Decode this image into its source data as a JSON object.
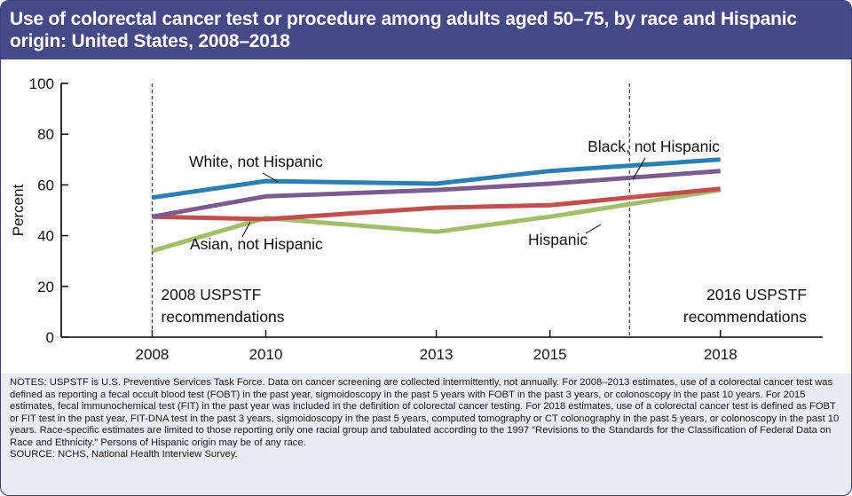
{
  "title": "Use of colorectal cancer test or procedure among adults aged 50–75, by race and Hispanic origin: United States, 2008–2018",
  "chart_data": {
    "type": "line",
    "x": [
      2008,
      2010,
      2013,
      2015,
      2018
    ],
    "xlim": [
      2006.4,
      2019.8
    ],
    "ylim": [
      0,
      100
    ],
    "yticks": [
      0,
      20,
      40,
      60,
      80,
      100
    ],
    "xlabel": "",
    "ylabel": "Percent",
    "grid": false,
    "series": [
      {
        "name": "White, not Hispanic",
        "values": [
          55,
          61.5,
          60.5,
          65.5,
          70
        ],
        "color": "#2e7fb0"
      },
      {
        "name": "Black, not Hispanic",
        "values": [
          47.5,
          55.5,
          58,
          60.5,
          65.5
        ],
        "color": "#7a5c8f"
      },
      {
        "name": "Asian, not Hispanic",
        "values": [
          47.5,
          46.5,
          51,
          52,
          58.5
        ],
        "color": "#c0504d"
      },
      {
        "name": "Hispanic",
        "values": [
          34,
          47,
          41.5,
          47.5,
          58
        ],
        "color": "#a3be6a"
      }
    ],
    "vlines": [
      {
        "x": 2008,
        "label_line1": "2008 USPSTF",
        "label_line2": "recommendations"
      },
      {
        "x": 2016.4,
        "label_line1": "2016 USPSTF",
        "label_line2": "recommendations"
      }
    ]
  },
  "notes": [
    "NOTES: USPSTF is U.S. Preventive Services Task Force. Data on cancer screening are collected intermittently, not annually. For 2008–2013 estimates, use of a colorectal cancer test was defined as reporting a fecal occult blood test (FOBT) in the past year, sigmoidoscopy in the past 5 years with FOBT in the past 3 years, or colonoscopy in the past 10 years. For 2015 estimates, fecal immunochemical test (FIT) in the past year was included in the definition of colorectal cancer testing. For 2018 estimates, use of a colorectal cancer test is defined as FOBT or FIT test in the past year, FIT-DNA test in the past 3 years, sigmoidoscopy in the past 5 years, computed tomography or CT colonography in the past 5 years, or colonoscopy in the past 10 years. Race-specific estimates are limited to those reporting only one racial group and tabulated according to the 1997 “Revisions to the Standards for the Classification of Federal Data on Race and Ethnicity.” Persons of Hispanic origin may be of any race.",
    "SOURCE: NCHS, National Health Interview Survey."
  ]
}
